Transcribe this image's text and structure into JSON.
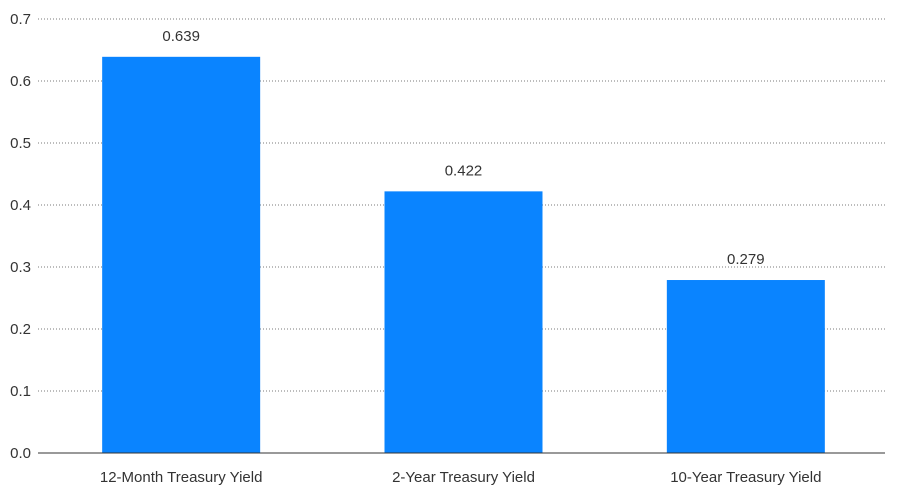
{
  "chart_data": {
    "type": "bar",
    "title": "",
    "xlabel": "",
    "ylabel": "",
    "categories": [
      "12-Month Treasury Yield",
      "2-Year Treasury Yield",
      "10-Year Treasury Yield"
    ],
    "values": [
      0.639,
      0.422,
      0.279
    ],
    "data_labels": [
      "0.639",
      "0.422",
      "0.279"
    ],
    "ylim": [
      0,
      0.7
    ],
    "yticks": [
      "0.0",
      "0.1",
      "0.2",
      "0.3",
      "0.4",
      "0.5",
      "0.6",
      "0.7"
    ],
    "grid": true,
    "legend": "none",
    "colors": {
      "bar": "#0a84ff",
      "text": "#333333",
      "grid": "#7a7a7a"
    }
  }
}
